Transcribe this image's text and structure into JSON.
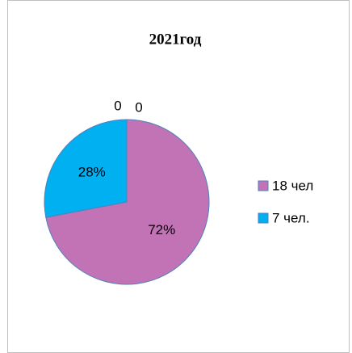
{
  "chart_data": {
    "type": "pie",
    "title": "2021год",
    "categories": [
      "18 чел",
      "7 чел.",
      null,
      null
    ],
    "values": [
      72,
      28,
      0,
      0
    ],
    "value_labels": [
      "72%",
      "28%",
      "0",
      "0"
    ],
    "colors": [
      "#c173b6",
      "#00b0f0",
      "#9bbb59",
      "#8064a2"
    ],
    "legend": "right"
  }
}
